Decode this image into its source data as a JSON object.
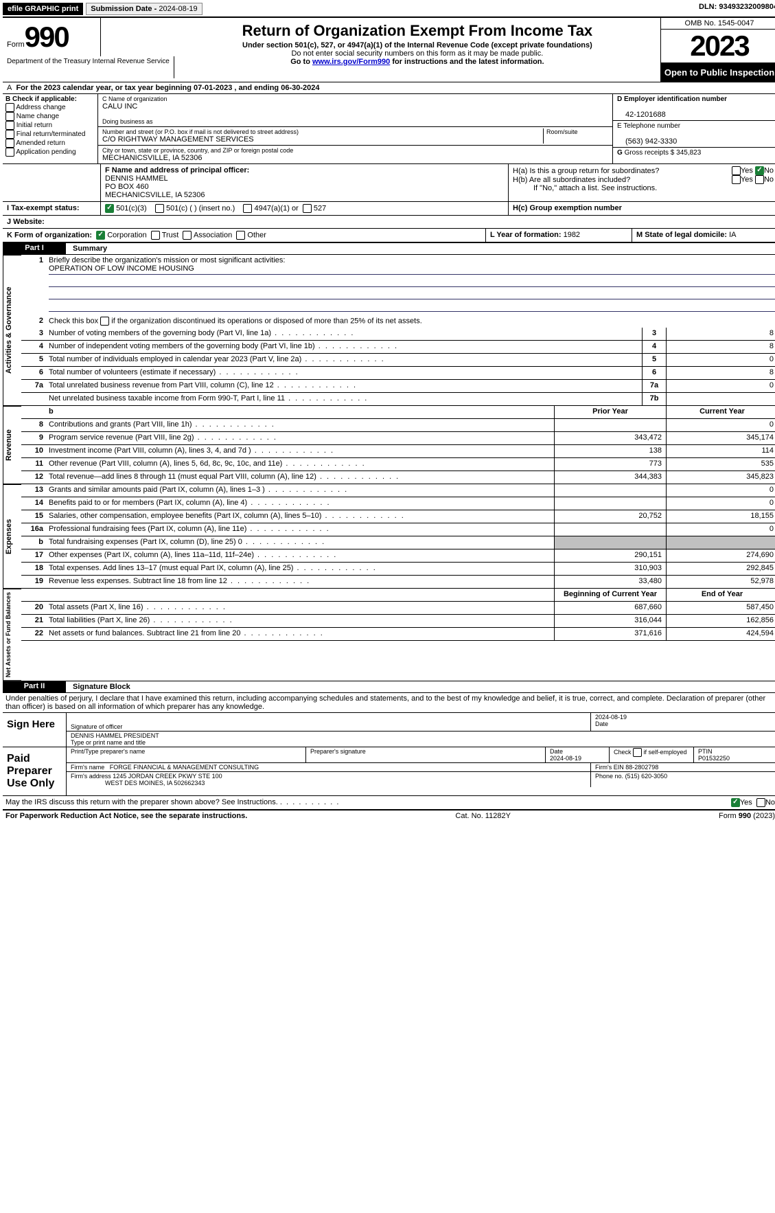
{
  "top": {
    "efile": "efile GRAPHIC print",
    "sub_label": "Submission Date - ",
    "sub_date": "2024-08-19",
    "dln_label": "DLN:",
    "dln": "93493232009804"
  },
  "header": {
    "form_word": "Form",
    "form_no": "990",
    "title": "Return of Organization Exempt From Income Tax",
    "sub1": "Under section 501(c), 527, or 4947(a)(1) of the Internal Revenue Code (except private foundations)",
    "sub2": "Do not enter social security numbers on this form as it may be made public.",
    "sub3_pre": "Go to ",
    "sub3_link": "www.irs.gov/Form990",
    "sub3_post": " for instructions and the latest information.",
    "omb": "OMB No. 1545-0047",
    "year": "2023",
    "open": "Open to Public Inspection",
    "dept": "Department of the Treasury Internal Revenue Service"
  },
  "a_line": "For the 2023 calendar year, or tax year beginning 07-01-2023   , and ending 06-30-2024",
  "b": {
    "header": "B Check if applicable:",
    "opts": [
      "Address change",
      "Name change",
      "Initial return",
      "Final return/terminated",
      "Amended return",
      "Application pending"
    ]
  },
  "c": {
    "name_label": "C Name of organization",
    "name": "CALU INC",
    "dba_label": "Doing business as",
    "dba": "",
    "street_label": "Number and street (or P.O. box if mail is not delivered to street address)",
    "street": "C/O RIGHTWAY MANAGEMENT SERVICES",
    "room_label": "Room/suite",
    "city_label": "City or town, state or province, country, and ZIP or foreign postal code",
    "city": "MECHANICSVILLE, IA  52306"
  },
  "d": {
    "label": "D Employer identification number",
    "val": "42-1201688"
  },
  "e": {
    "label": "E Telephone number",
    "val": "(563) 942-3330"
  },
  "g": {
    "label": "G",
    "text": "Gross receipts $",
    "val": "345,823"
  },
  "f": {
    "label": "F  Name and address of principal officer:",
    "l1": "DENNIS HAMMEL",
    "l2": "PO BOX 460",
    "l3": "MECHANICSVILLE, IA  52306"
  },
  "h": {
    "a": "H(a)  Is this a group return for subordinates?",
    "b": "H(b)  Are all subordinates included?",
    "b_note": "If \"No,\" attach a list. See instructions.",
    "c": "H(c)  Group exemption number",
    "yes": "Yes",
    "no": "No"
  },
  "i": {
    "label": "I   Tax-exempt status:",
    "o1": "501(c)(3)",
    "o2": "501(c) (  ) (insert no.)",
    "o3": "4947(a)(1) or",
    "o4": "527"
  },
  "j": {
    "label": "J   Website:",
    "val": ""
  },
  "k": {
    "label": "K Form of organization:",
    "o1": "Corporation",
    "o2": "Trust",
    "o3": "Association",
    "o4": "Other"
  },
  "l": {
    "label": "L Year of formation:",
    "val": "1982"
  },
  "m": {
    "label": "M State of legal domicile:",
    "val": "IA"
  },
  "part1": {
    "tab": "Part I",
    "title": "Summary",
    "q1": "Briefly describe the organization's mission or most significant activities:",
    "mission": "OPERATION OF LOW INCOME HOUSING",
    "q2": "Check this box      if the organization discontinued its operations or disposed of more than 25% of its net assets.",
    "side_gov": "Activities & Governance",
    "side_rev": "Revenue",
    "side_exp": "Expenses",
    "side_net": "Net Assets or Fund Balances",
    "prior": "Prior Year",
    "current": "Current Year",
    "boy": "Beginning of Current Year",
    "eoy": "End of Year",
    "lines_top": [
      {
        "n": "3",
        "d": "Number of voting members of the governing body (Part VI, line 1a)",
        "box": "3",
        "v": "8"
      },
      {
        "n": "4",
        "d": "Number of independent voting members of the governing body (Part VI, line 1b)",
        "box": "4",
        "v": "8"
      },
      {
        "n": "5",
        "d": "Total number of individuals employed in calendar year 2023 (Part V, line 2a)",
        "box": "5",
        "v": "0"
      },
      {
        "n": "6",
        "d": "Total number of volunteers (estimate if necessary)",
        "box": "6",
        "v": "8"
      },
      {
        "n": "7a",
        "d": "Total unrelated business revenue from Part VIII, column (C), line 12",
        "box": "7a",
        "v": "0"
      },
      {
        "n": "",
        "d": "Net unrelated business taxable income from Form 990-T, Part I, line 11",
        "box": "7b",
        "v": ""
      }
    ],
    "lines_rev": [
      {
        "n": "8",
        "d": "Contributions and grants (Part VIII, line 1h)",
        "p": "",
        "c": "0"
      },
      {
        "n": "9",
        "d": "Program service revenue (Part VIII, line 2g)",
        "p": "343,472",
        "c": "345,174"
      },
      {
        "n": "10",
        "d": "Investment income (Part VIII, column (A), lines 3, 4, and 7d )",
        "p": "138",
        "c": "114"
      },
      {
        "n": "11",
        "d": "Other revenue (Part VIII, column (A), lines 5, 6d, 8c, 9c, 10c, and 11e)",
        "p": "773",
        "c": "535"
      },
      {
        "n": "12",
        "d": "Total revenue—add lines 8 through 11 (must equal Part VIII, column (A), line 12)",
        "p": "344,383",
        "c": "345,823"
      }
    ],
    "lines_exp": [
      {
        "n": "13",
        "d": "Grants and similar amounts paid (Part IX, column (A), lines 1–3 )",
        "p": "",
        "c": "0"
      },
      {
        "n": "14",
        "d": "Benefits paid to or for members (Part IX, column (A), line 4)",
        "p": "",
        "c": "0"
      },
      {
        "n": "15",
        "d": "Salaries, other compensation, employee benefits (Part IX, column (A), lines 5–10)",
        "p": "20,752",
        "c": "18,155"
      },
      {
        "n": "16a",
        "d": "Professional fundraising fees (Part IX, column (A), line 11e)",
        "p": "",
        "c": "0"
      },
      {
        "n": "b",
        "d": "Total fundraising expenses (Part IX, column (D), line 25) 0",
        "p": "SHADE",
        "c": "SHADE"
      },
      {
        "n": "17",
        "d": "Other expenses (Part IX, column (A), lines 11a–11d, 11f–24e)",
        "p": "290,151",
        "c": "274,690"
      },
      {
        "n": "18",
        "d": "Total expenses. Add lines 13–17 (must equal Part IX, column (A), line 25)",
        "p": "310,903",
        "c": "292,845"
      },
      {
        "n": "19",
        "d": "Revenue less expenses. Subtract line 18 from line 12",
        "p": "33,480",
        "c": "52,978"
      }
    ],
    "lines_net": [
      {
        "n": "20",
        "d": "Total assets (Part X, line 16)",
        "p": "687,660",
        "c": "587,450"
      },
      {
        "n": "21",
        "d": "Total liabilities (Part X, line 26)",
        "p": "316,044",
        "c": "162,856"
      },
      {
        "n": "22",
        "d": "Net assets or fund balances. Subtract line 21 from line 20",
        "p": "371,616",
        "c": "424,594"
      }
    ]
  },
  "part2": {
    "tab": "Part II",
    "title": "Signature Block",
    "penalty": "Under penalties of perjury, I declare that I have examined this return, including accompanying schedules and statements, and to the best of my knowledge and belief, it is true, correct, and complete. Declaration of preparer (other than officer) is based on all information of which preparer has any knowledge."
  },
  "sign": {
    "here": "Sign Here",
    "sig_label": "Signature of officer",
    "date_label": "Date",
    "date": "2024-08-19",
    "name": "DENNIS HAMMEL PRESIDENT",
    "name_label": "Type or print name and title"
  },
  "paid": {
    "label": "Paid Preparer Use Only",
    "h1": "Print/Type preparer's name",
    "h2": "Preparer's signature",
    "h3": "Date",
    "h3v": "2024-08-19",
    "h4": "Check        if self-employed",
    "h5": "PTIN",
    "h5v": "P01532250",
    "firm_label": "Firm's name",
    "firm": "FORGE FINANCIAL & MANAGEMENT CONSULTING",
    "ein_label": "Firm's EIN",
    "ein": "88-2802798",
    "addr_label": "Firm's address",
    "addr1": "1245 JORDAN CREEK PKWY STE 100",
    "addr2": "WEST DES MOINES, IA  502662343",
    "phone_label": "Phone no.",
    "phone": "(515) 620-3050"
  },
  "discuss": {
    "q": "May the IRS discuss this return with the preparer shown above? See Instructions.",
    "yes": "Yes",
    "no": "No"
  },
  "footer": {
    "left": "For Paperwork Reduction Act Notice, see the separate instructions.",
    "mid": "Cat. No. 11282Y",
    "right_pre": "Form ",
    "right_b": "990",
    "right_post": " (2023)"
  }
}
